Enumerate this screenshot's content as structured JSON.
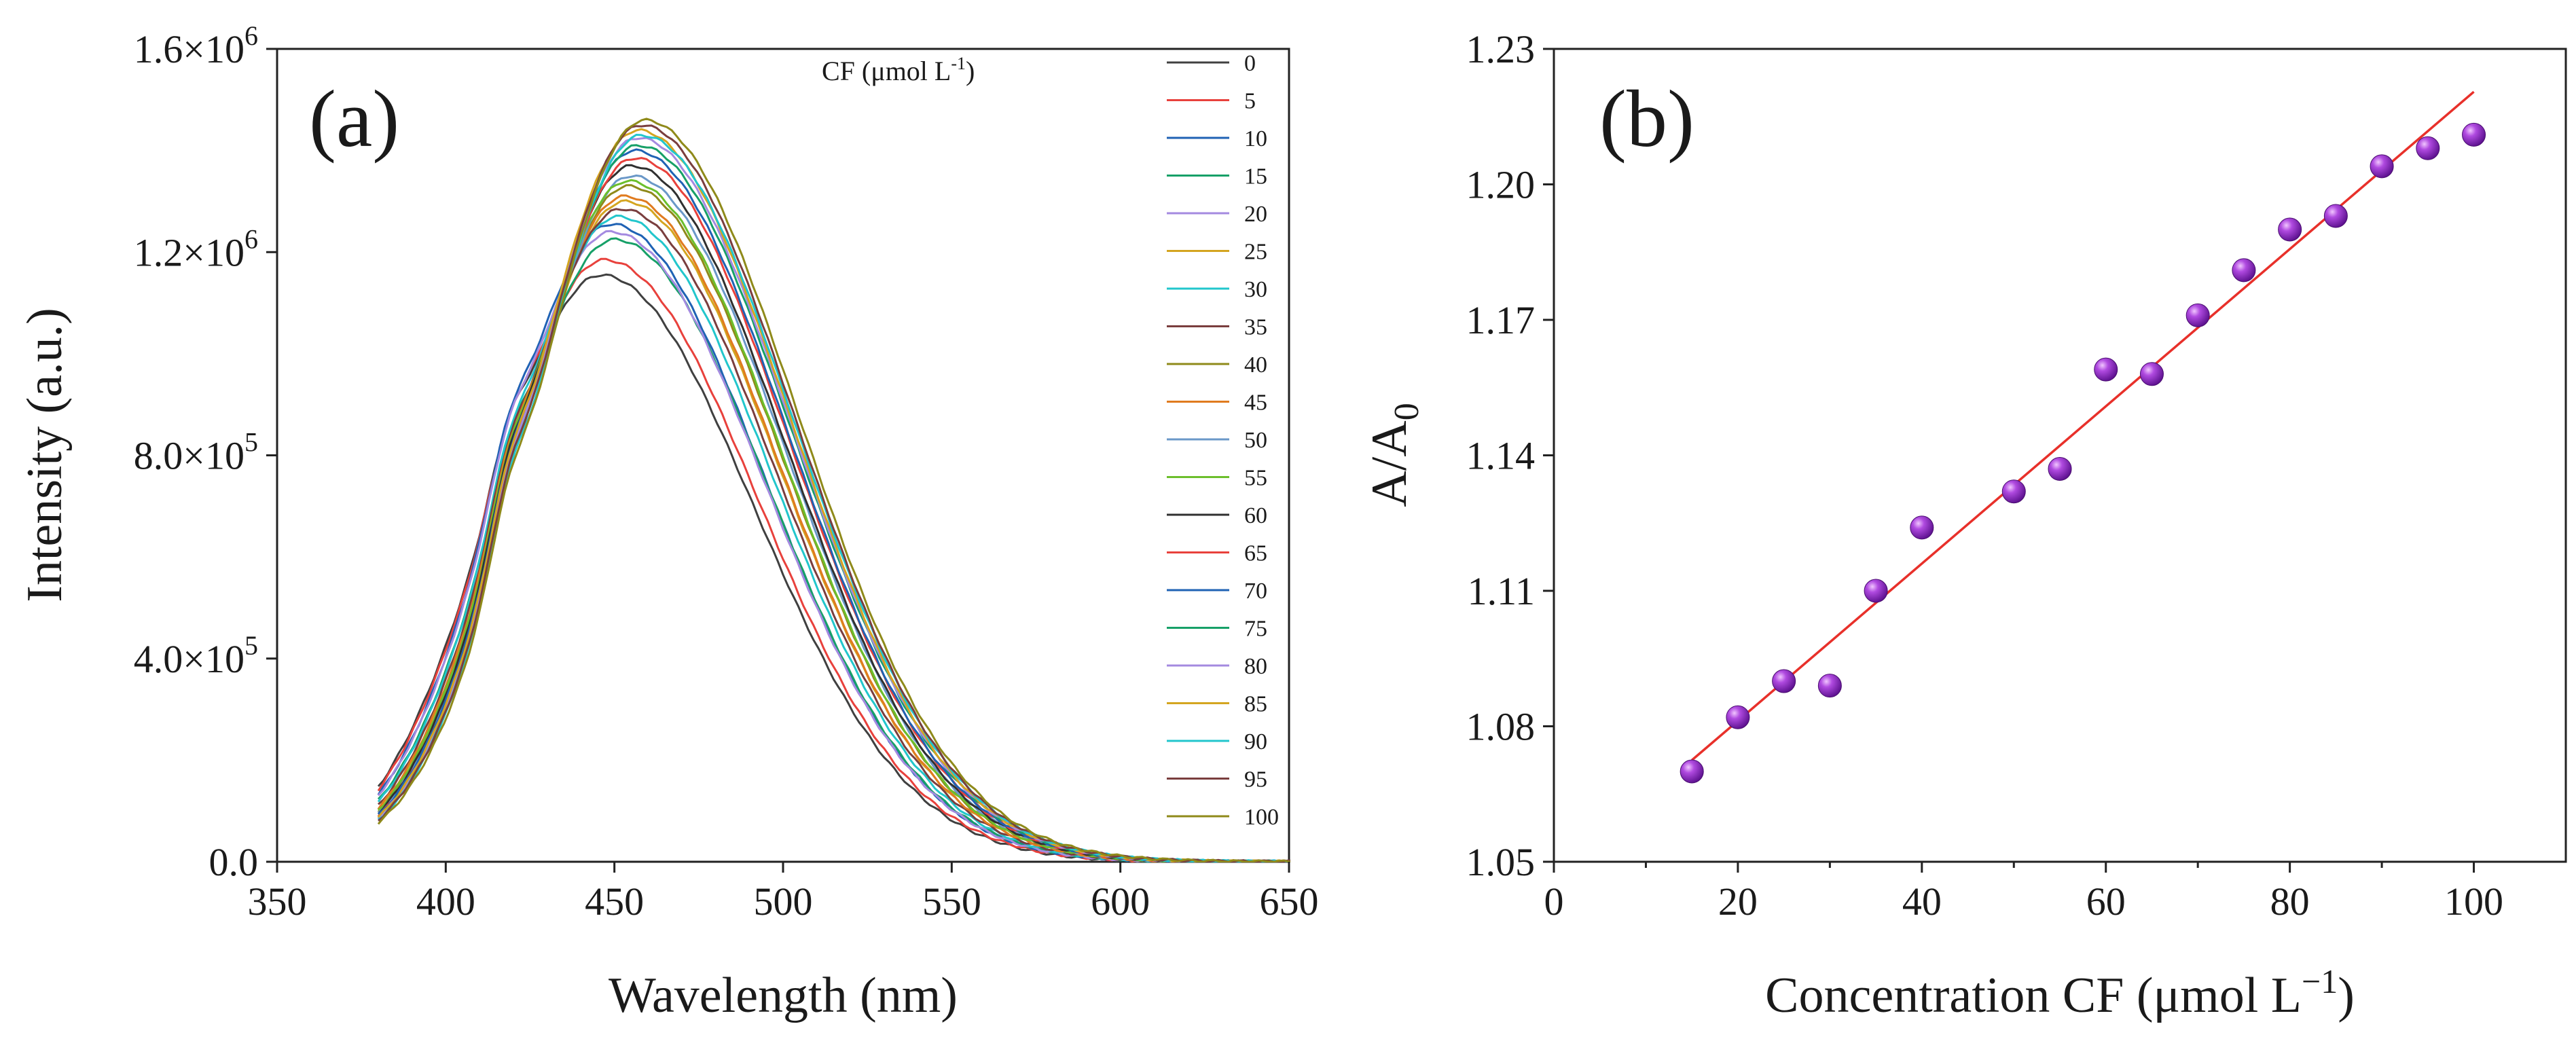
{
  "chart_data": [
    {
      "panel_label": "(a)",
      "type": "line",
      "title": "",
      "xlabel": "Wavelength (nm)",
      "ylabel": "Intensity (a.u.)",
      "xlim": [
        350,
        650
      ],
      "ylim": [
        0,
        1600000
      ],
      "x_ticks": [
        350,
        400,
        450,
        500,
        550,
        600,
        650
      ],
      "y_ticks": [
        0,
        400000,
        800000,
        1200000,
        1600000
      ],
      "x_tick_labels": [
        "350",
        "400",
        "450",
        "500",
        "550",
        "600",
        "650"
      ],
      "y_tick_labels": [
        {
          "mantissa": "0.0",
          "exp": ""
        },
        {
          "mantissa": "4.0×10",
          "exp": "5"
        },
        {
          "mantissa": "8.0×10",
          "exp": "5"
        },
        {
          "mantissa": "1.2×10",
          "exp": "6"
        },
        {
          "mantissa": "1.6×10",
          "exp": "6"
        }
      ],
      "legend_title": {
        "text": "CF (μmol L",
        "sup": "-1",
        "close": ")"
      },
      "legend_position": "right",
      "spectrum_start_nm": 380,
      "series": [
        {
          "name": "0",
          "color": "#404040",
          "peak_nm": 446,
          "peak": 1155000
        },
        {
          "name": "5",
          "color": "#e8413c",
          "peak_nm": 447,
          "peak": 1185000
        },
        {
          "name": "10",
          "color": "#1f62b4",
          "peak_nm": 449,
          "peak": 1255000
        },
        {
          "name": "15",
          "color": "#17a068",
          "peak_nm": 450,
          "peak": 1225000
        },
        {
          "name": "20",
          "color": "#a48ae0",
          "peak_nm": 449,
          "peak": 1240000
        },
        {
          "name": "25",
          "color": "#d4a520",
          "peak_nm": 453,
          "peak": 1300000
        },
        {
          "name": "30",
          "color": "#22c6cc",
          "peak_nm": 451,
          "peak": 1270000
        },
        {
          "name": "35",
          "color": "#7a3e3e",
          "peak_nm": 452,
          "peak": 1285000
        },
        {
          "name": "40",
          "color": "#8f8a1a",
          "peak_nm": 454,
          "peak": 1330000
        },
        {
          "name": "45",
          "color": "#e07b1f",
          "peak_nm": 453,
          "peak": 1310000
        },
        {
          "name": "50",
          "color": "#6a98c8",
          "peak_nm": 455,
          "peak": 1350000
        },
        {
          "name": "55",
          "color": "#6cbf2c",
          "peak_nm": 454,
          "peak": 1340000
        },
        {
          "name": "60",
          "color": "#303030",
          "peak_nm": 455,
          "peak": 1370000
        },
        {
          "name": "65",
          "color": "#e8413c",
          "peak_nm": 456,
          "peak": 1385000
        },
        {
          "name": "70",
          "color": "#1f62b4",
          "peak_nm": 456,
          "peak": 1400000
        },
        {
          "name": "75",
          "color": "#17a068",
          "peak_nm": 457,
          "peak": 1410000
        },
        {
          "name": "80",
          "color": "#a48ae0",
          "peak_nm": 457,
          "peak": 1425000
        },
        {
          "name": "85",
          "color": "#d4a520",
          "peak_nm": 457,
          "peak": 1440000
        },
        {
          "name": "90",
          "color": "#22c6cc",
          "peak_nm": 458,
          "peak": 1430000
        },
        {
          "name": "95",
          "color": "#7a3e3e",
          "peak_nm": 458,
          "peak": 1450000
        },
        {
          "name": "100",
          "color": "#8f8a1a",
          "peak_nm": 459,
          "peak": 1460000
        }
      ]
    },
    {
      "panel_label": "(b)",
      "type": "scatter",
      "title": "",
      "xlabel": "Concentration CF (μmol L",
      "xlabel_sup": "−1",
      "xlabel_close": ")",
      "ylabel": "A/A",
      "ylabel_sub": "0",
      "xlim": [
        0,
        110
      ],
      "ylim": [
        1.05,
        1.23
      ],
      "x_ticks": [
        0,
        20,
        40,
        60,
        80,
        100
      ],
      "y_ticks": [
        1.05,
        1.08,
        1.11,
        1.14,
        1.17,
        1.2,
        1.23
      ],
      "x_tick_labels": [
        "0",
        "20",
        "40",
        "60",
        "80",
        "100"
      ],
      "y_tick_labels": [
        "1.05",
        "1.08",
        "1.11",
        "1.14",
        "1.17",
        "1.20",
        "1.23"
      ],
      "marker_color": "#9b2fd0",
      "fit_color": "#e8302a",
      "x": [
        15,
        20,
        25,
        30,
        35,
        40,
        50,
        55,
        60,
        65,
        70,
        75,
        80,
        85,
        90,
        95,
        100
      ],
      "y": [
        1.07,
        1.082,
        1.09,
        1.089,
        1.11,
        1.124,
        1.132,
        1.137,
        1.159,
        1.158,
        1.171,
        1.181,
        1.19,
        1.193,
        1.204,
        1.208,
        1.211
      ],
      "fit": {
        "x": [
          15,
          100
        ],
        "y": [
          1.0725,
          1.2205
        ]
      }
    }
  ]
}
